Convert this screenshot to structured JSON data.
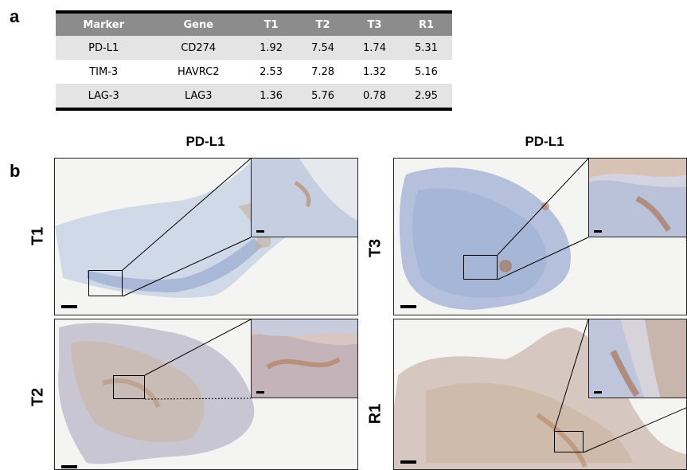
{
  "panel_a": {
    "letter": "a",
    "table": {
      "headers": [
        "Marker",
        "Gene",
        "T1",
        "T2",
        "T3",
        "R1"
      ],
      "rows": [
        [
          "PD-L1",
          "CD274",
          "1.92",
          "7.54",
          "1.74",
          "5.31"
        ],
        [
          "TIM-3",
          "HAVRC2",
          "2.53",
          "7.28",
          "1.32",
          "5.16"
        ],
        [
          "LAG-3",
          "LAG3",
          "1.36",
          "5.76",
          "0.78",
          "2.95"
        ]
      ]
    }
  },
  "panel_b": {
    "letter": "b",
    "left_title": "PD-L1",
    "right_title": "PD-L1",
    "labels": {
      "t1": "T1",
      "t2": "T2",
      "t3": "T3",
      "r1": "R1"
    },
    "colors": {
      "hematoxylin": "#9aaed0",
      "dab": "#b5835a",
      "background": "#f4f4f2"
    }
  }
}
